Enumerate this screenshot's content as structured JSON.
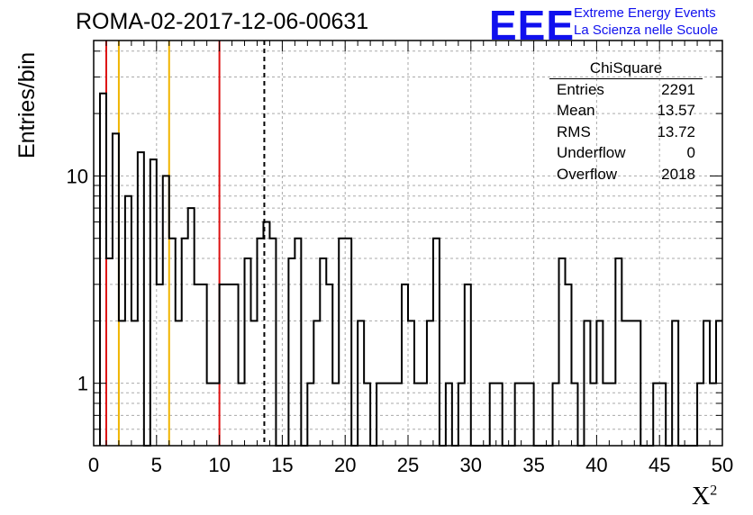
{
  "title": "ROMA-02-2017-12-06-00631",
  "logo": {
    "text": "EEE",
    "line1": "Extreme Energy Events",
    "line2": "La Scienza nelle Scuole"
  },
  "stats": {
    "name": "ChiSquare",
    "rows": [
      {
        "label": "Entries",
        "value": "2291"
      },
      {
        "label": "Mean",
        "value": "13.57"
      },
      {
        "label": "RMS",
        "value": "13.72"
      },
      {
        "label": "Underflow",
        "value": "0"
      },
      {
        "label": "Overflow",
        "value": "2018"
      }
    ]
  },
  "chart_data": {
    "type": "histogram",
    "title": "ROMA-02-2017-12-06-00631",
    "xlabel": "χ²",
    "ylabel": "Entries/bin",
    "xlim": [
      0,
      50
    ],
    "ylim": [
      0.5,
      45
    ],
    "yscale": "log",
    "grid": true,
    "bin_width": 0.5,
    "bin_starts": [
      1,
      1.5,
      2,
      2.5,
      3,
      3.5,
      4,
      4.5,
      5,
      5.5,
      6,
      6.5,
      7,
      7.5,
      8,
      8.5,
      9,
      9.5,
      10,
      10.5,
      11,
      11.5,
      12,
      12.5,
      13,
      13.5,
      14,
      14.5,
      15,
      15.5,
      16,
      16.5,
      17,
      17.5,
      18,
      18.5,
      19,
      19.5,
      20,
      20.5,
      21,
      21.5,
      22,
      22.5,
      23,
      23.5,
      24,
      24.5,
      25,
      25.5,
      26,
      26.5,
      27,
      27.5,
      28,
      28.5,
      29,
      29.5,
      30,
      30.5,
      31,
      31.5,
      32,
      32.5,
      33,
      33.5,
      34,
      34.5,
      35,
      35.5,
      36,
      36.5,
      37,
      37.5,
      38,
      38.5,
      39,
      39.5,
      40,
      40.5,
      41,
      41.5,
      42,
      42.5,
      43,
      43.5,
      44,
      44.5,
      45,
      45.5,
      46,
      46.5,
      47,
      47.5,
      48,
      48.5,
      49,
      49.5
    ],
    "counts": [
      4,
      16,
      2,
      8,
      2,
      13,
      0,
      12,
      3,
      10,
      5,
      2,
      5,
      7,
      3,
      3,
      1,
      1,
      3,
      3,
      3,
      1,
      4,
      2,
      5,
      6,
      5,
      0,
      0,
      4,
      5,
      0,
      1,
      2,
      4,
      3,
      1,
      5,
      5,
      0,
      2,
      1,
      0,
      1,
      1,
      1,
      1,
      3,
      2,
      1,
      1,
      2,
      5,
      0,
      1,
      0,
      1,
      3,
      0,
      0,
      0,
      1,
      1,
      0,
      0,
      1,
      1,
      1,
      0,
      0,
      0,
      1,
      4,
      3,
      1,
      0,
      2,
      1,
      2,
      1,
      1,
      4,
      2,
      2,
      2,
      0,
      0,
      1,
      1,
      0,
      2,
      0,
      0,
      0,
      1,
      2,
      1,
      2
    ],
    "first_bin": {
      "x": 0.5,
      "count": 25
    },
    "reference_lines": [
      {
        "x": 1,
        "color": "#dd1111",
        "style": "solid"
      },
      {
        "x": 2,
        "color": "#f0b400",
        "style": "solid"
      },
      {
        "x": 6,
        "color": "#f0b400",
        "style": "solid"
      },
      {
        "x": 10,
        "color": "#dd1111",
        "style": "solid"
      },
      {
        "x": 13.57,
        "color": "#000000",
        "style": "dashed"
      }
    ],
    "x_ticks": [
      "0",
      "5",
      "10",
      "15",
      "20",
      "25",
      "30",
      "35",
      "40",
      "45",
      "50"
    ],
    "y_ticks": [
      "1",
      "10"
    ],
    "legend": "top-right"
  }
}
